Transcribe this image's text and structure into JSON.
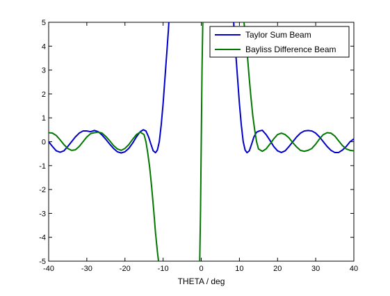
{
  "chart_data": {
    "type": "line",
    "title": "",
    "xlabel": "THETA / deg",
    "ylabel": "",
    "xlim": [
      -40,
      40
    ],
    "ylim": [
      -5,
      5
    ],
    "xticks": [
      -40,
      -30,
      -20,
      -10,
      0,
      10,
      20,
      30,
      40
    ],
    "yticks": [
      -5,
      -4,
      -3,
      -2,
      -1,
      0,
      1,
      2,
      3,
      4,
      5
    ],
    "grid": false,
    "legend_position": "top-right",
    "series": [
      {
        "name": "Taylor Sum Beam",
        "color": "#0000c8",
        "points": [
          [
            -40,
            0.0
          ],
          [
            -39,
            -0.2
          ],
          [
            -38,
            -0.38
          ],
          [
            -37,
            -0.44
          ],
          [
            -36,
            -0.38
          ],
          [
            -35,
            -0.2
          ],
          [
            -34,
            0.0
          ],
          [
            -33,
            0.2
          ],
          [
            -32,
            0.36
          ],
          [
            -31,
            0.45
          ],
          [
            -30,
            0.45
          ],
          [
            -29,
            0.42
          ],
          [
            -28,
            0.47
          ],
          [
            -27,
            0.42
          ],
          [
            -26,
            0.28
          ],
          [
            -25,
            0.1
          ],
          [
            -24,
            -0.1
          ],
          [
            -23,
            -0.28
          ],
          [
            -22,
            -0.42
          ],
          [
            -21,
            -0.47
          ],
          [
            -20,
            -0.42
          ],
          [
            -19,
            -0.28
          ],
          [
            -18,
            -0.06
          ],
          [
            -17,
            0.2
          ],
          [
            -16,
            0.42
          ],
          [
            -15.2,
            0.5
          ],
          [
            -14.5,
            0.45
          ],
          [
            -13.8,
            0.2
          ],
          [
            -13.2,
            -0.1
          ],
          [
            -12.6,
            -0.38
          ],
          [
            -12.0,
            -0.46
          ],
          [
            -11.5,
            -0.35
          ],
          [
            -11.0,
            0.0
          ],
          [
            -10.5,
            0.7
          ],
          [
            -10.0,
            1.6
          ],
          [
            -9.5,
            2.7
          ],
          [
            -9.0,
            3.8
          ],
          [
            -8.6,
            4.7
          ],
          [
            -8.5,
            5.0
          ],
          null,
          [
            8.5,
            5.0
          ],
          [
            8.6,
            4.7
          ],
          [
            9.0,
            3.8
          ],
          [
            9.5,
            2.7
          ],
          [
            10.0,
            1.6
          ],
          [
            10.5,
            0.7
          ],
          [
            11.0,
            0.0
          ],
          [
            11.5,
            -0.35
          ],
          [
            12.0,
            -0.46
          ],
          [
            12.6,
            -0.38
          ],
          [
            13.2,
            -0.1
          ],
          [
            13.8,
            0.2
          ],
          [
            14.5,
            0.4
          ],
          [
            15.2,
            0.45
          ],
          [
            16,
            0.48
          ],
          [
            17,
            0.3
          ],
          [
            18,
            0.06
          ],
          [
            19,
            -0.2
          ],
          [
            20,
            -0.38
          ],
          [
            21,
            -0.45
          ],
          [
            22,
            -0.38
          ],
          [
            23,
            -0.2
          ],
          [
            24,
            0.0
          ],
          [
            25,
            0.2
          ],
          [
            26,
            0.36
          ],
          [
            27,
            0.45
          ],
          [
            28,
            0.47
          ],
          [
            29,
            0.45
          ],
          [
            30,
            0.36
          ],
          [
            31,
            0.2
          ],
          [
            32,
            0.0
          ],
          [
            33,
            -0.2
          ],
          [
            34,
            -0.36
          ],
          [
            35,
            -0.45
          ],
          [
            36,
            -0.45
          ],
          [
            37,
            -0.35
          ],
          [
            38,
            -0.2
          ],
          [
            39,
            0.0
          ],
          [
            40,
            0.12
          ]
        ]
      },
      {
        "name": "Bayliss Difference Beam",
        "color": "#007800",
        "points": [
          [
            -40,
            0.38
          ],
          [
            -39,
            0.36
          ],
          [
            -38,
            0.26
          ],
          [
            -37,
            0.08
          ],
          [
            -36,
            -0.12
          ],
          [
            -35,
            -0.28
          ],
          [
            -34,
            -0.36
          ],
          [
            -33,
            -0.34
          ],
          [
            -32,
            -0.2
          ],
          [
            -31,
            0.0
          ],
          [
            -30,
            0.2
          ],
          [
            -29,
            0.34
          ],
          [
            -28,
            0.38
          ],
          [
            -27,
            0.4
          ],
          [
            -26,
            0.36
          ],
          [
            -25,
            0.22
          ],
          [
            -24,
            0.04
          ],
          [
            -23,
            -0.16
          ],
          [
            -22,
            -0.3
          ],
          [
            -21,
            -0.36
          ],
          [
            -20,
            -0.28
          ],
          [
            -19,
            -0.12
          ],
          [
            -18,
            0.1
          ],
          [
            -17,
            0.3
          ],
          [
            -16,
            0.4
          ],
          [
            -15,
            0.3
          ],
          [
            -14.5,
            0.0
          ],
          [
            -14,
            -0.5
          ],
          [
            -13.5,
            -1.1
          ],
          [
            -13,
            -1.9
          ],
          [
            -12.5,
            -2.8
          ],
          [
            -12,
            -3.8
          ],
          [
            -11.5,
            -4.6
          ],
          [
            -11.2,
            -5.0
          ],
          null,
          [
            -0.4,
            -5.0
          ],
          [
            -0.2,
            -3.0
          ],
          [
            0.0,
            0.0
          ],
          [
            0.2,
            3.0
          ],
          [
            0.4,
            5.0
          ],
          null,
          [
            11.2,
            5.0
          ],
          [
            11.5,
            4.6
          ],
          [
            12,
            3.8
          ],
          [
            12.5,
            2.8
          ],
          [
            13,
            1.9
          ],
          [
            13.5,
            1.1
          ],
          [
            14,
            0.5
          ],
          [
            14.5,
            0.0
          ],
          [
            15,
            -0.3
          ],
          [
            16,
            -0.4
          ],
          [
            17,
            -0.3
          ],
          [
            18,
            -0.1
          ],
          [
            19,
            0.12
          ],
          [
            20,
            0.3
          ],
          [
            21,
            0.36
          ],
          [
            22,
            0.3
          ],
          [
            23,
            0.16
          ],
          [
            24,
            -0.04
          ],
          [
            25,
            -0.22
          ],
          [
            26,
            -0.36
          ],
          [
            27,
            -0.4
          ],
          [
            28,
            -0.36
          ],
          [
            29,
            -0.28
          ],
          [
            30,
            -0.1
          ],
          [
            31,
            0.12
          ],
          [
            32,
            0.3
          ],
          [
            33,
            0.38
          ],
          [
            34,
            0.36
          ],
          [
            35,
            0.24
          ],
          [
            36,
            0.04
          ],
          [
            37,
            -0.16
          ],
          [
            38,
            -0.3
          ],
          [
            39,
            -0.36
          ],
          [
            40,
            -0.38
          ]
        ]
      }
    ]
  }
}
